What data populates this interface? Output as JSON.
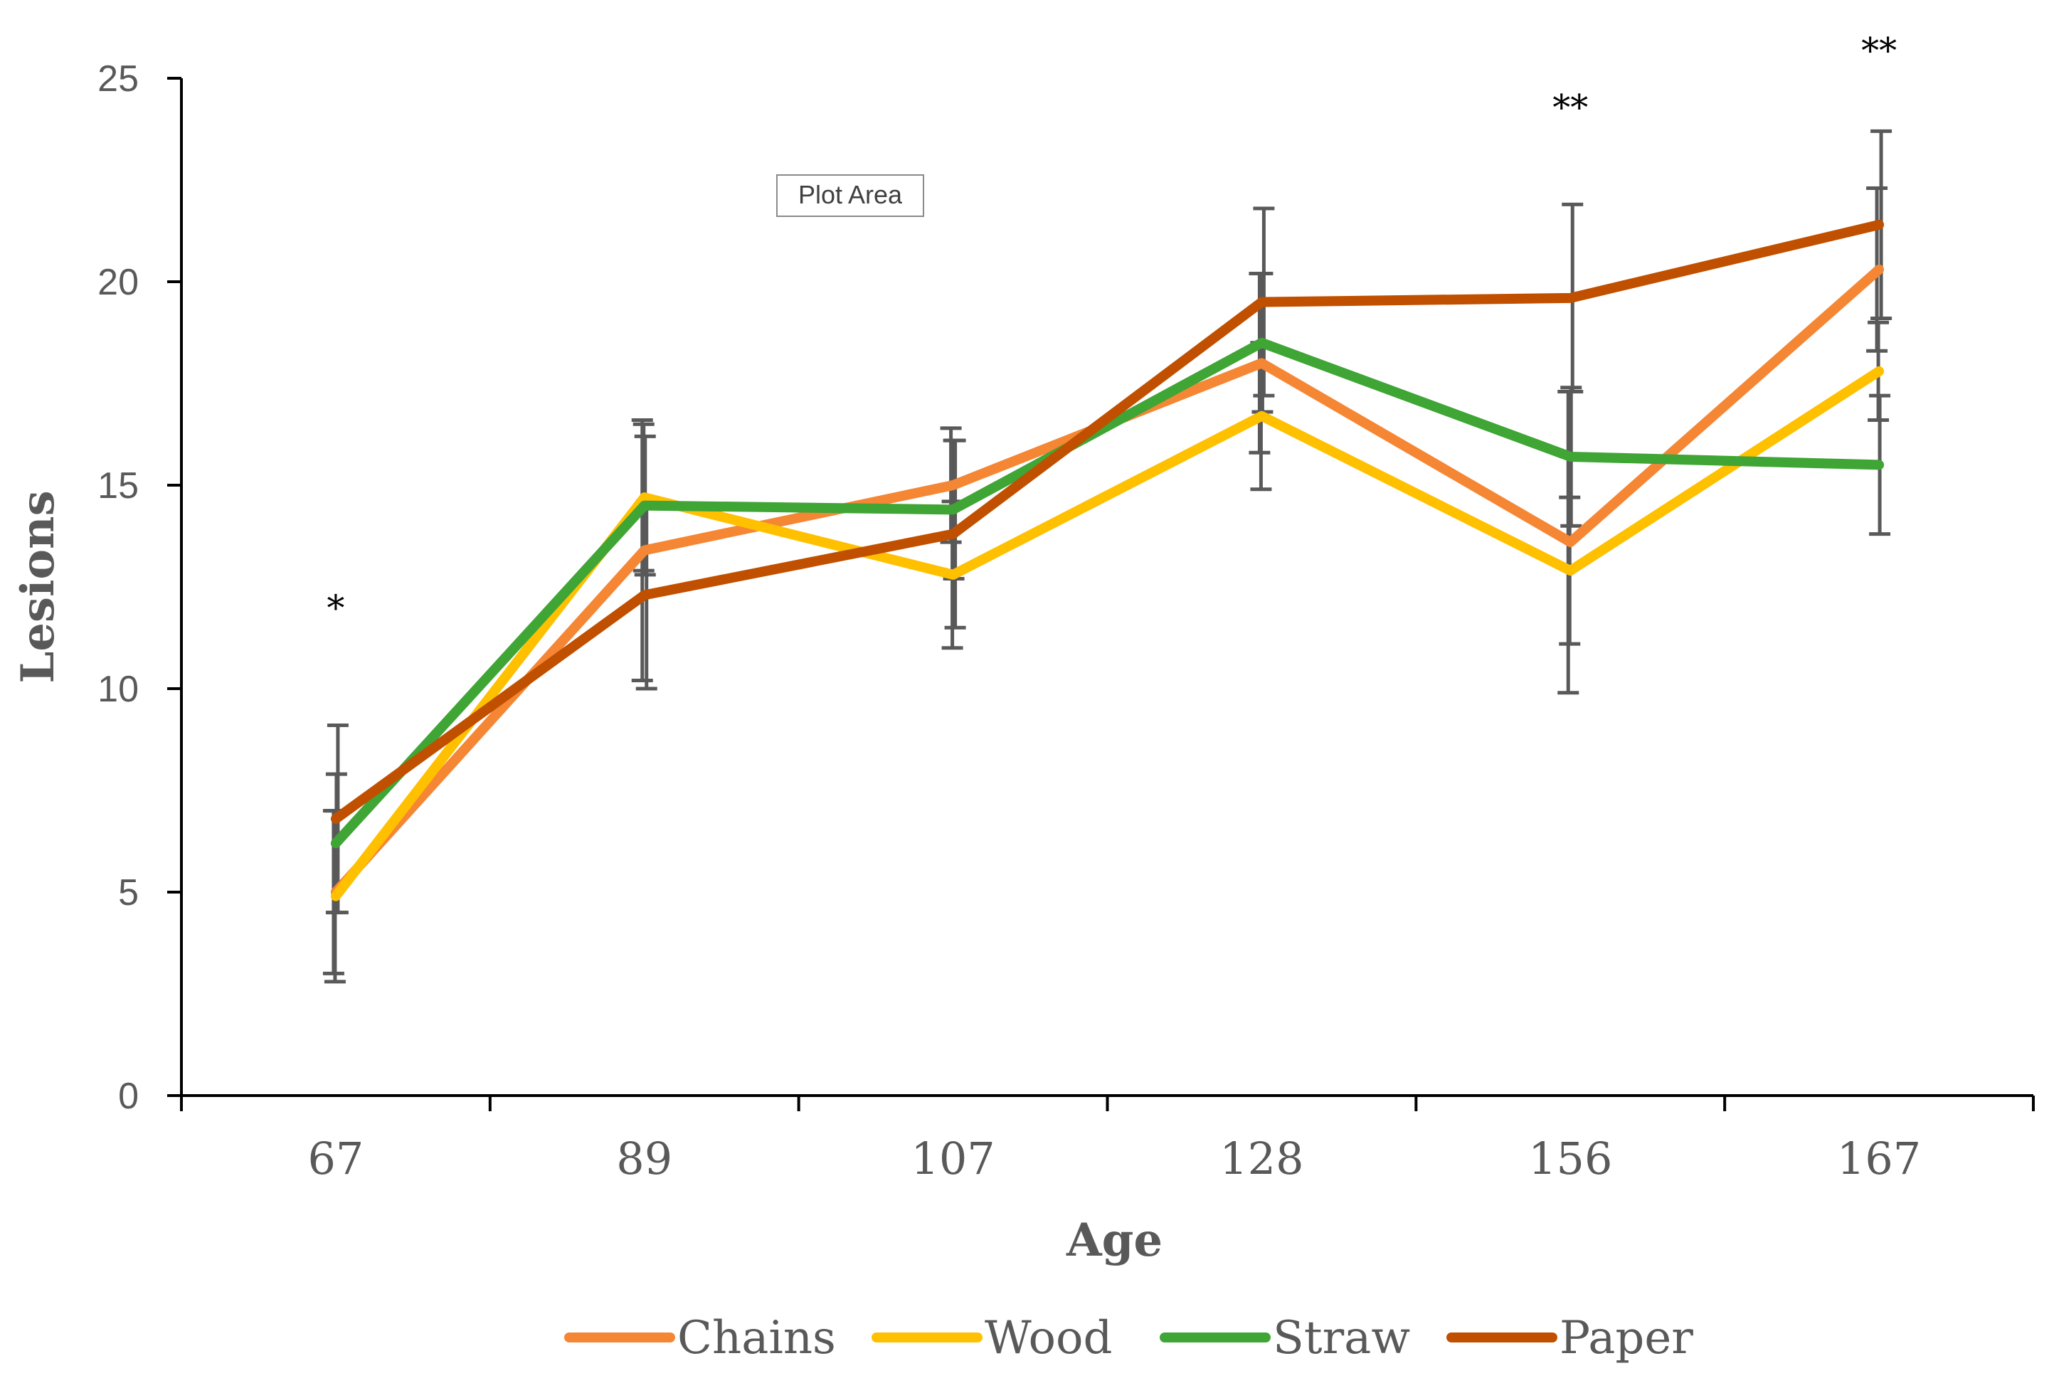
{
  "chart_data": {
    "type": "line",
    "title": "",
    "xlabel": "Age",
    "ylabel": "Lesions",
    "categories": [
      "67",
      "89",
      "107",
      "128",
      "156",
      "167"
    ],
    "ylim": [
      0,
      25
    ],
    "yticks": [
      0,
      5,
      10,
      15,
      20,
      25
    ],
    "grid": false,
    "legend_position": "bottom",
    "series": [
      {
        "name": "Chains",
        "color": "#F58634",
        "values": [
          5.0,
          13.4,
          15.0,
          18.0,
          13.6,
          20.3
        ],
        "errors": [
          2.0,
          3.2,
          1.4,
          2.2,
          3.7,
          2.0
        ]
      },
      {
        "name": "Wood",
        "color": "#FFC000",
        "values": [
          4.9,
          14.7,
          12.8,
          16.7,
          12.9,
          17.8
        ],
        "errors": [
          2.1,
          1.8,
          1.8,
          1.8,
          1.8,
          1.2
        ]
      },
      {
        "name": "Straw",
        "color": "#3FA535",
        "values": [
          6.2,
          14.5,
          14.4,
          18.5,
          15.7,
          15.5
        ],
        "errors": [
          1.7,
          1.7,
          1.7,
          1.7,
          1.7,
          1.7
        ]
      },
      {
        "name": "Paper",
        "color": "#C05000",
        "values": [
          6.8,
          12.3,
          13.8,
          19.5,
          19.6,
          21.4
        ],
        "errors": [
          2.3,
          2.3,
          2.3,
          2.3,
          2.3,
          2.3
        ]
      }
    ],
    "annotations": [
      {
        "category": "67",
        "text": "*",
        "y": 12.2
      },
      {
        "category": "156",
        "text": "**",
        "y": 24.5
      },
      {
        "category": "167",
        "text": "**",
        "y": 25.9
      }
    ],
    "tooltip": "Plot Area"
  }
}
